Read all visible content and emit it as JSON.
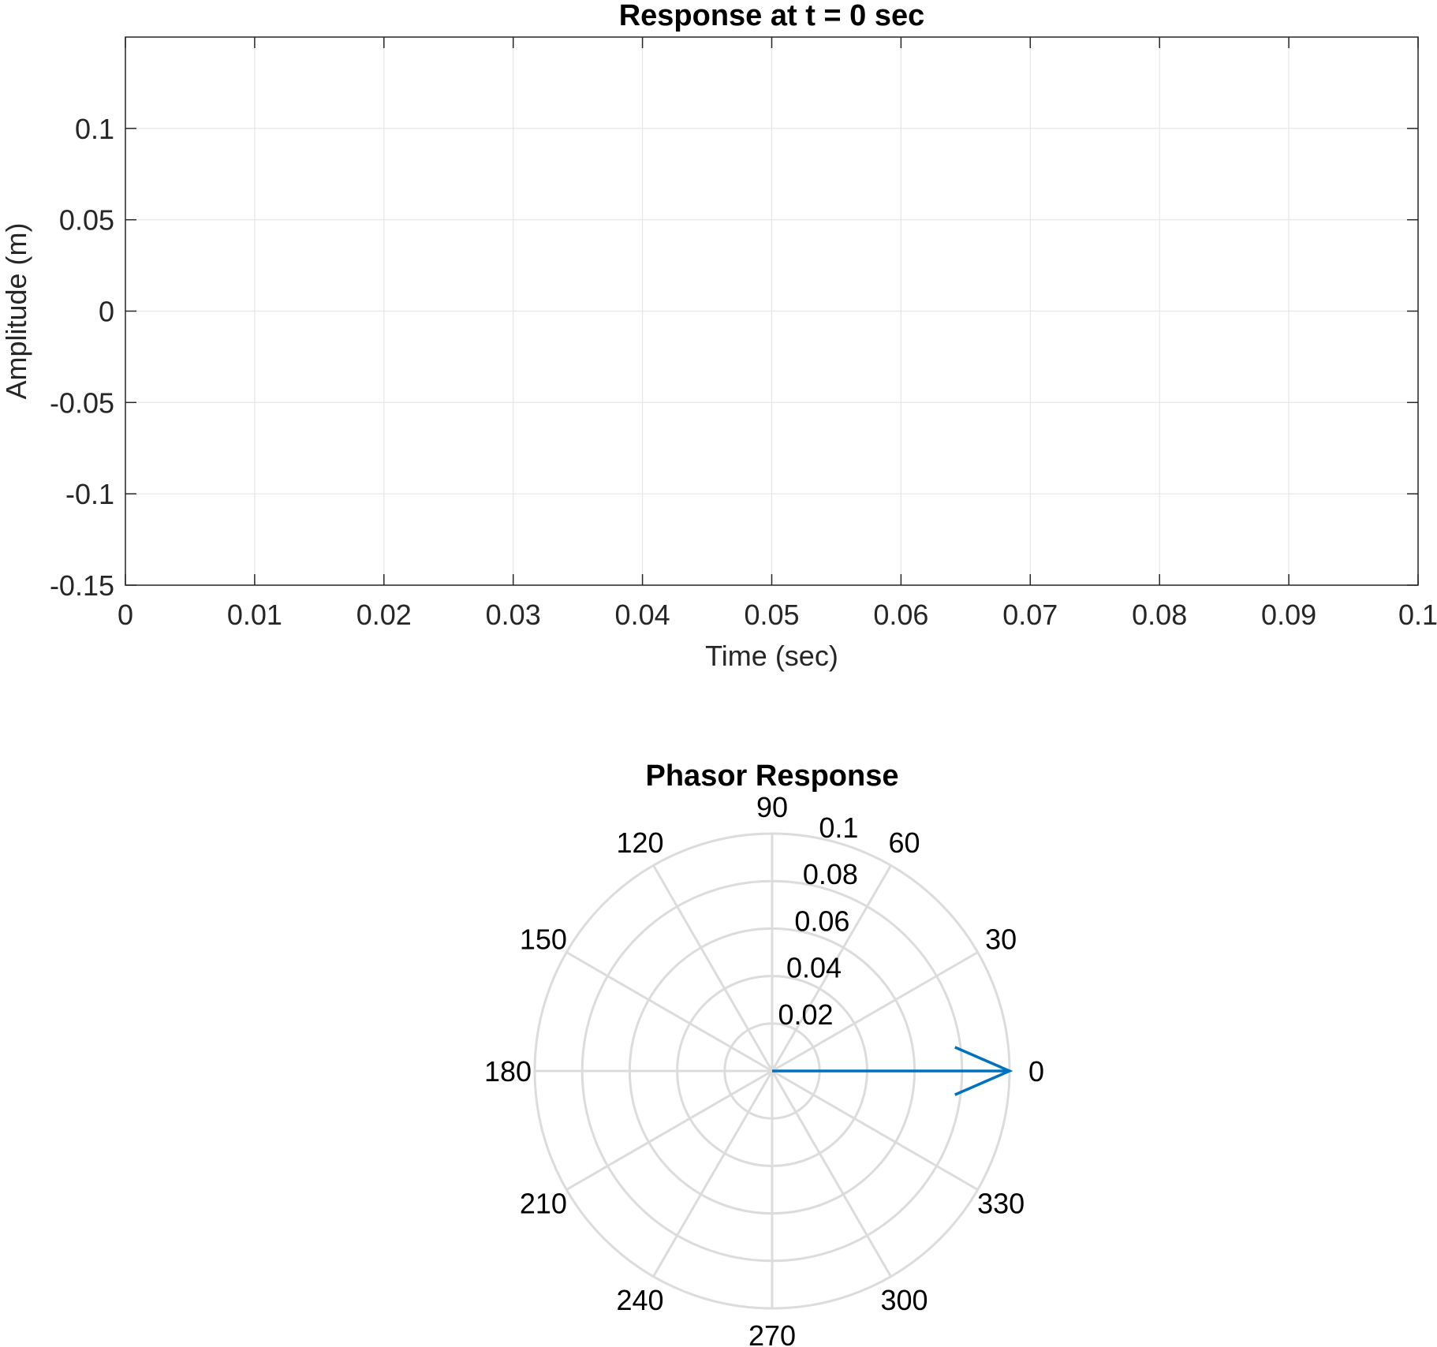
{
  "chart_data": [
    {
      "type": "line",
      "title": "Response at t = 0 sec",
      "xlabel": "Time (sec)",
      "ylabel": "Amplitude (m)",
      "xlim": [
        0,
        0.1
      ],
      "ylim": [
        -0.15,
        0.15
      ],
      "xticks": [
        "0",
        "0.01",
        "0.02",
        "0.03",
        "0.04",
        "0.05",
        "0.06",
        "0.07",
        "0.08",
        "0.09",
        "0.1"
      ],
      "yticks": [
        "-0.15",
        "-0.1",
        "-0.05",
        "0",
        "0.05",
        "0.1"
      ],
      "grid": true,
      "series": []
    },
    {
      "type": "polar",
      "title": "Phasor Response",
      "rlim": [
        0,
        0.1
      ],
      "rticks": [
        "0.02",
        "0.04",
        "0.06",
        "0.08",
        "0.1"
      ],
      "theta_ticks": [
        "0",
        "30",
        "60",
        "90",
        "120",
        "150",
        "180",
        "210",
        "240",
        "270",
        "300",
        "330"
      ],
      "grid": true,
      "phasor": {
        "magnitude": 0.1,
        "angle_deg": 0,
        "color": "#0072BD"
      }
    }
  ]
}
